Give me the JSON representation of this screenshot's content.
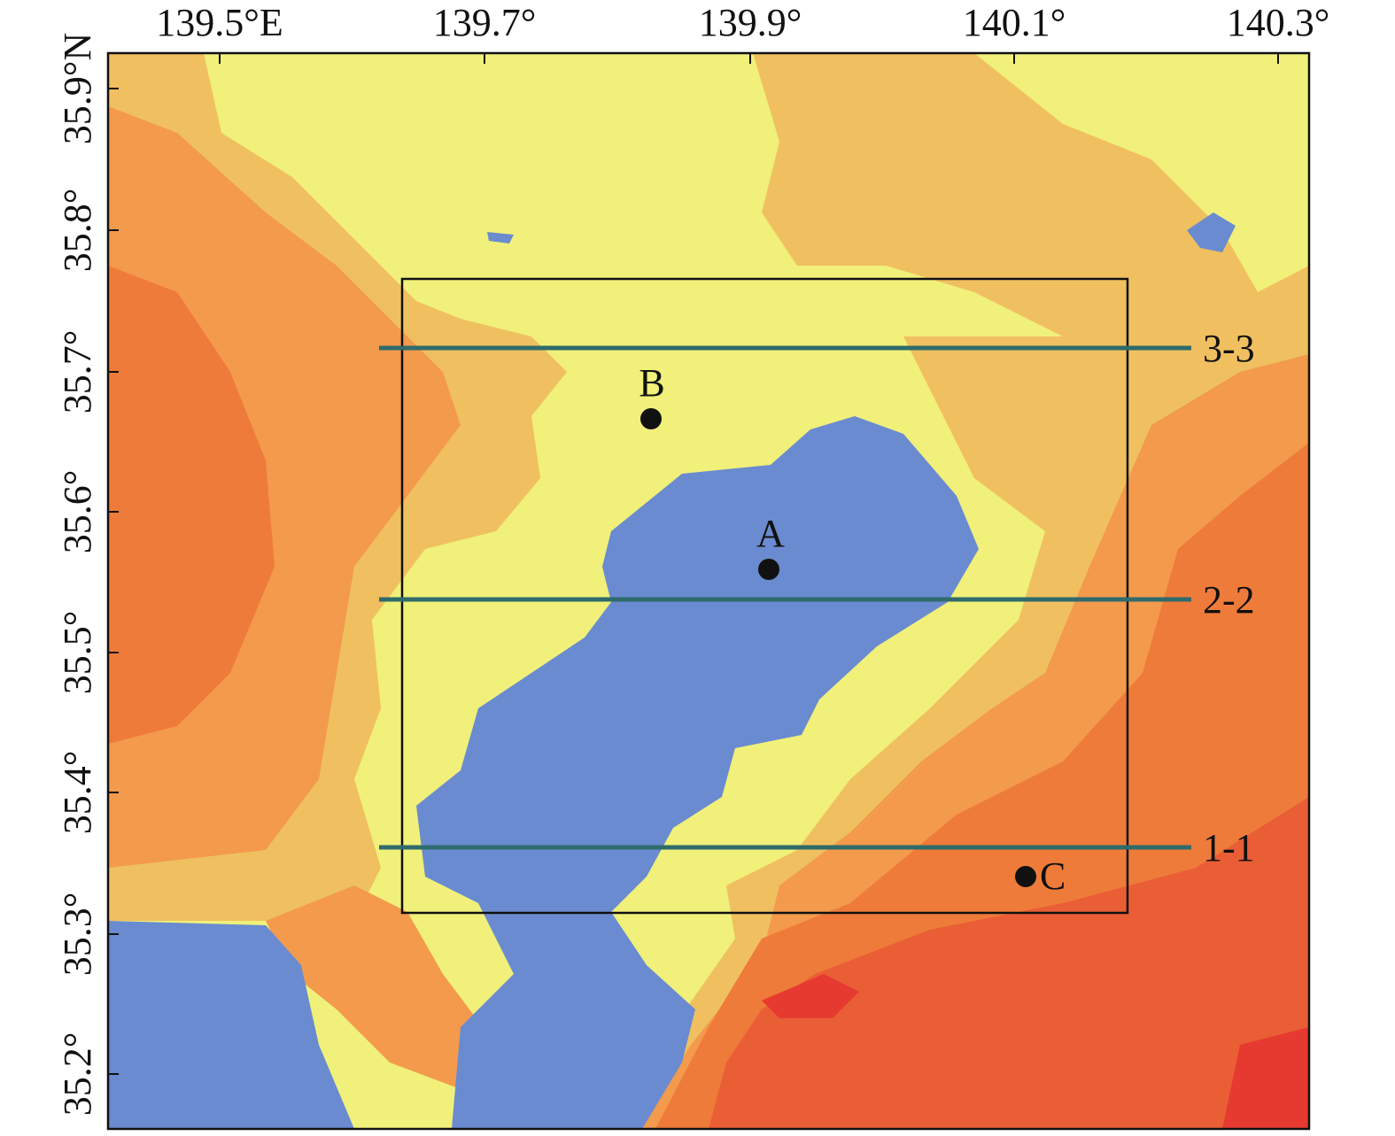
{
  "axes": {
    "top_labels": [
      "139.5°E",
      "139.7°",
      "139.9°",
      "140.1°",
      "140.3°"
    ],
    "left_labels": [
      "35.9°N",
      "35.8°",
      "35.7°",
      "35.6°",
      "35.5°",
      "35.4°",
      "35.3°",
      "35.2°"
    ]
  },
  "points": [
    {
      "label": "B"
    },
    {
      "label": "A"
    },
    {
      "label": "C"
    }
  ],
  "sections": [
    {
      "label": "3-3"
    },
    {
      "label": "2-2"
    },
    {
      "label": "1-1"
    }
  ]
}
